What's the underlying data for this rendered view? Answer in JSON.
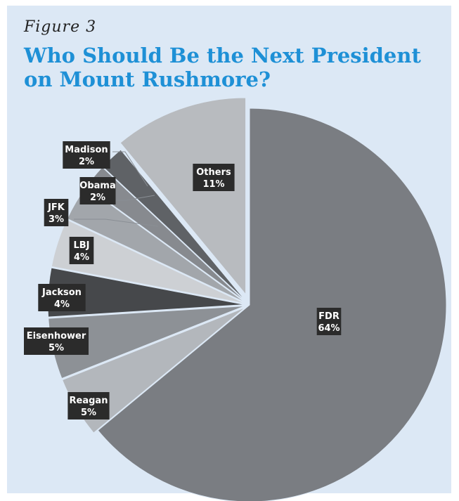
{
  "figure_label": "Figure 3",
  "chart_data": {
    "type": "pie",
    "title": "Who Should Be the Next President on Mount Rushmore?",
    "slices": [
      {
        "name": "FDR",
        "value": 64,
        "label": "64%",
        "color": "#7a7d82"
      },
      {
        "name": "Reagan",
        "value": 5,
        "label": "5%",
        "color": "#b3b7bc"
      },
      {
        "name": "Eisenhower",
        "value": 5,
        "label": "5%",
        "color": "#8d9196"
      },
      {
        "name": "Jackson",
        "value": 4,
        "label": "4%",
        "color": "#46484b"
      },
      {
        "name": "LBJ",
        "value": 4,
        "label": "4%",
        "color": "#cdd0d4"
      },
      {
        "name": "JFK",
        "value": 3,
        "label": "3%",
        "color": "#a2a6ab"
      },
      {
        "name": "Obama",
        "value": 2,
        "label": "2%",
        "color": "#878a8f"
      },
      {
        "name": "Madison",
        "value": 2,
        "label": "2%",
        "color": "#5f6266"
      },
      {
        "name": "Others",
        "value": 11,
        "label": "11%",
        "color": "#b8bbbf"
      }
    ]
  }
}
